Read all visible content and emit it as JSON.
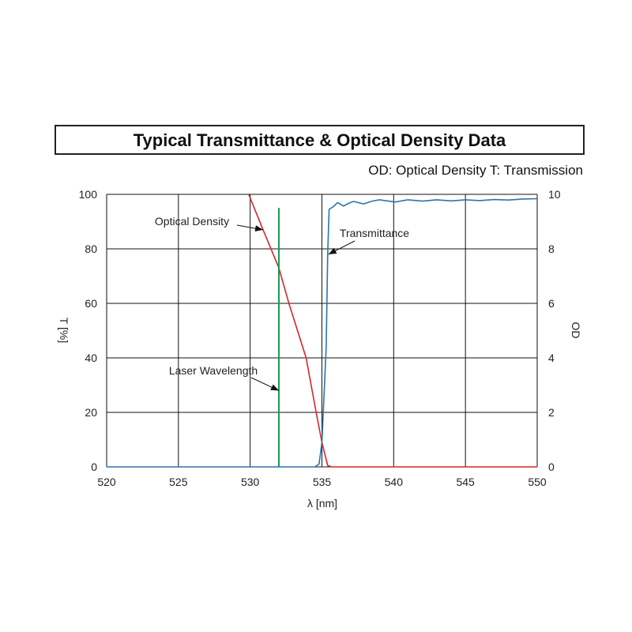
{
  "chart_data": {
    "type": "line",
    "title": "Typical Transmittance & Optical Density Data",
    "subtitle": "OD: Optical Density   T: Transmission",
    "xlabel": "λ [nm]",
    "ylabel": "T [%]",
    "y2label": "OD",
    "xlim": [
      520,
      550
    ],
    "ylim": [
      0,
      100
    ],
    "y2lim": [
      0,
      10
    ],
    "xticks": [
      "520",
      "525",
      "530",
      "535",
      "540",
      "545",
      "550"
    ],
    "yticks": [
      "0",
      "20",
      "40",
      "60",
      "80",
      "100"
    ],
    "y2ticks": [
      "0",
      "2",
      "4",
      "6",
      "8",
      "10"
    ],
    "grid": true,
    "colors": {
      "od": "#d9262b",
      "transmittance": "#2a74b0",
      "laser": "#1a9a55"
    },
    "series": [
      {
        "name": "Optical Density",
        "axis": "right",
        "x": [
          529.9,
          530.9,
          532.0,
          532.7,
          533.9,
          534.6,
          535.0,
          535.4,
          535.7,
          550
        ],
        "y": [
          10,
          8.7,
          7.3,
          6.0,
          4.0,
          2.0,
          0.9,
          0.05,
          0,
          0
        ]
      },
      {
        "name": "Transmittance",
        "axis": "left",
        "x": [
          520,
          534.5,
          534.8,
          535.0,
          535.3,
          535.4,
          535.5,
          535.8,
          536.1,
          536.5,
          536.9,
          537.2,
          537.9,
          538.5,
          539.0,
          540.1,
          541.0,
          542,
          543,
          544,
          545,
          546,
          547,
          548,
          549,
          550
        ],
        "y": [
          0,
          0,
          1,
          9,
          44,
          78,
          94.5,
          95.5,
          97,
          95.7,
          96.8,
          97.4,
          96.5,
          97.5,
          98,
          97.2,
          98,
          97.5,
          98,
          97.6,
          98,
          97.7,
          98.1,
          97.9,
          98.3,
          98.4
        ]
      },
      {
        "name": "Laser Wavelength",
        "axis": "left",
        "x": [
          532,
          532
        ],
        "y": [
          0,
          95
        ]
      }
    ],
    "annotations": [
      {
        "text": "Optical Density",
        "target": [
          530.9,
          87
        ]
      },
      {
        "text": "Transmittance",
        "target": [
          535.45,
          78
        ]
      },
      {
        "text": "Laser Wavelength",
        "target": [
          532,
          28
        ]
      }
    ]
  }
}
